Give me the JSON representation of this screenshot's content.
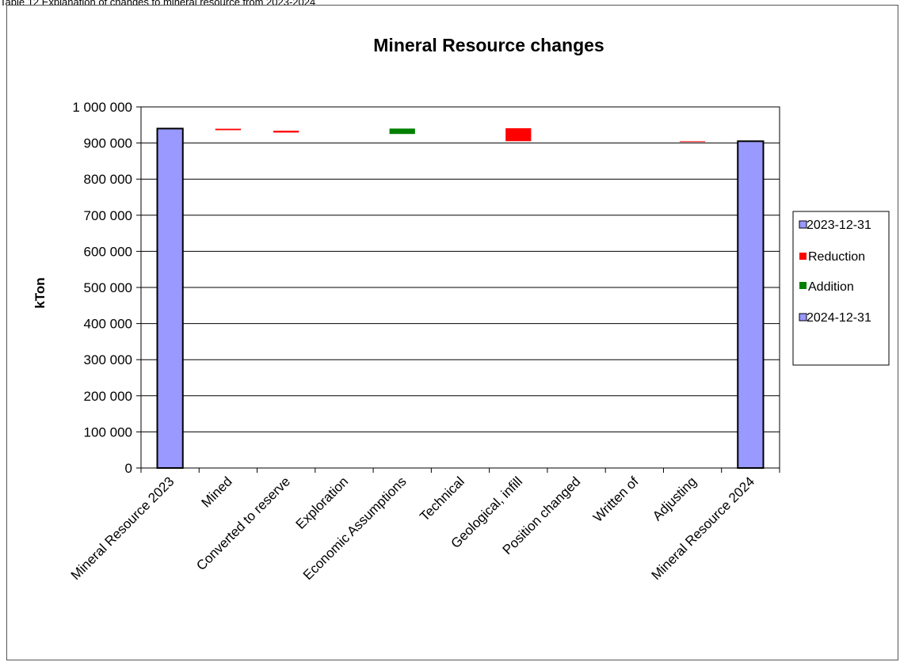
{
  "caption": "Table 12 Explanation of changes to mineral resource from 2023-2024",
  "chart_data": {
    "type": "bar",
    "title": "Mineral Resource changes",
    "ylabel": "kTon",
    "xlabel": "",
    "ylim": [
      0,
      1000000
    ],
    "ytick_step": 100000,
    "ytick_labels": [
      "0",
      "100 000",
      "200 000",
      "300 000",
      "400 000",
      "500 000",
      "600 000",
      "700 000",
      "800 000",
      "900 000",
      "1 000 000"
    ],
    "grid": true,
    "legend_position": "right",
    "categories": [
      "Mineral Resource 2023",
      "Mined",
      "Converted to reserve",
      "Exploration",
      "Economic Assumptions",
      "Technical",
      "Geological, infill",
      "Position changed",
      "Written of",
      "Adjusting",
      "Mineral Resource 2024"
    ],
    "series": [
      {
        "name": "2023-12-31",
        "color": "#9999ff",
        "values": [
          {
            "category": "Mineral Resource 2023",
            "value": 940000
          }
        ]
      },
      {
        "name": "Reduction",
        "color": "#ff0000",
        "values": [
          {
            "category": "Mined",
            "from": 935500,
            "to": 939500
          },
          {
            "category": "Converted to reserve",
            "from": 929000,
            "to": 934000
          },
          {
            "category": "Geological, infill",
            "from": 905000,
            "to": 941000
          },
          {
            "category": "Adjusting",
            "from": 903000,
            "to": 905000
          }
        ]
      },
      {
        "name": "Addition",
        "color": "#008000",
        "values": [
          {
            "category": "Economic Assumptions",
            "from": 925000,
            "to": 940000
          }
        ]
      },
      {
        "name": "2024-12-31",
        "color": "#9999ff",
        "values": [
          {
            "category": "Mineral Resource 2024",
            "value": 905000
          }
        ]
      }
    ]
  }
}
